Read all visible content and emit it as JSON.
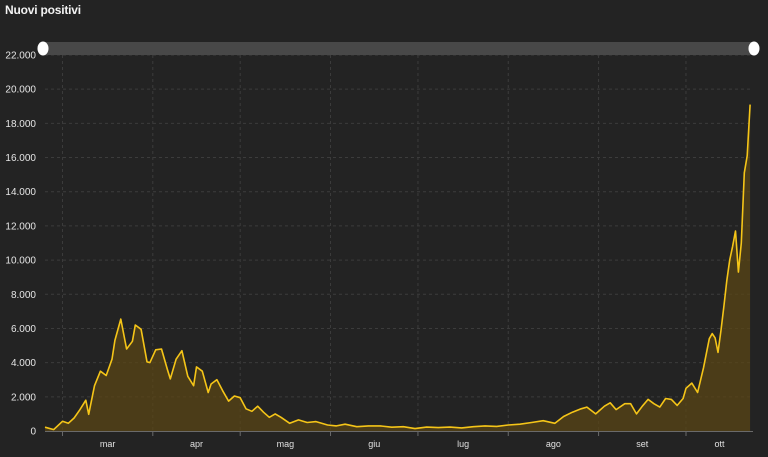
{
  "chart_data": {
    "type": "area",
    "title": "Nuovi positivi",
    "xlabel": "",
    "ylabel": "",
    "ylim": [
      0,
      22000
    ],
    "y_ticks": [
      "0",
      "2.000",
      "4.000",
      "6.000",
      "8.000",
      "10.000",
      "12.000",
      "14.000",
      "16.000",
      "18.000",
      "20.000",
      "22.000"
    ],
    "y_tick_values": [
      0,
      2000,
      4000,
      6000,
      8000,
      10000,
      12000,
      14000,
      16000,
      18000,
      20000,
      22000
    ],
    "x_ticks": [
      "mar",
      "apr",
      "mag",
      "giu",
      "lug",
      "ago",
      "set",
      "ott"
    ],
    "x_start": "2020-02-24",
    "x_end": "2020-10-17",
    "x_tick_dates": [
      "2020-03-01",
      "2020-04-01",
      "2020-05-01",
      "2020-06-01",
      "2020-07-01",
      "2020-08-01",
      "2020-09-01",
      "2020-10-01"
    ],
    "grid": true,
    "line_color": "#f5c518",
    "fill_color": "#5a4616",
    "series": [
      {
        "name": "Nuovi positivi",
        "points": [
          [
            "2020-02-24",
            220
          ],
          [
            "2020-02-27",
            80
          ],
          [
            "2020-03-01",
            570
          ],
          [
            "2020-03-03",
            450
          ],
          [
            "2020-03-05",
            760
          ],
          [
            "2020-03-07",
            1250
          ],
          [
            "2020-03-09",
            1800
          ],
          [
            "2020-03-10",
            980
          ],
          [
            "2020-03-12",
            2650
          ],
          [
            "2020-03-14",
            3500
          ],
          [
            "2020-03-16",
            3250
          ],
          [
            "2020-03-18",
            4200
          ],
          [
            "2020-03-19",
            5300
          ],
          [
            "2020-03-21",
            6550
          ],
          [
            "2020-03-23",
            4800
          ],
          [
            "2020-03-25",
            5250
          ],
          [
            "2020-03-26",
            6200
          ],
          [
            "2020-03-28",
            5950
          ],
          [
            "2020-03-30",
            4050
          ],
          [
            "2020-03-31",
            4000
          ],
          [
            "2020-04-02",
            4750
          ],
          [
            "2020-04-04",
            4800
          ],
          [
            "2020-04-06",
            3600
          ],
          [
            "2020-04-07",
            3050
          ],
          [
            "2020-04-09",
            4200
          ],
          [
            "2020-04-11",
            4700
          ],
          [
            "2020-04-13",
            3200
          ],
          [
            "2020-04-15",
            2650
          ],
          [
            "2020-04-16",
            3750
          ],
          [
            "2020-04-18",
            3500
          ],
          [
            "2020-04-20",
            2250
          ],
          [
            "2020-04-21",
            2750
          ],
          [
            "2020-04-23",
            3000
          ],
          [
            "2020-04-25",
            2350
          ],
          [
            "2020-04-27",
            1750
          ],
          [
            "2020-04-29",
            2050
          ],
          [
            "2020-05-01",
            1950
          ],
          [
            "2020-05-03",
            1300
          ],
          [
            "2020-05-05",
            1150
          ],
          [
            "2020-05-07",
            1450
          ],
          [
            "2020-05-09",
            1100
          ],
          [
            "2020-05-11",
            800
          ],
          [
            "2020-05-13",
            1000
          ],
          [
            "2020-05-15",
            800
          ],
          [
            "2020-05-18",
            450
          ],
          [
            "2020-05-21",
            650
          ],
          [
            "2020-05-24",
            500
          ],
          [
            "2020-05-27",
            550
          ],
          [
            "2020-05-31",
            350
          ],
          [
            "2020-06-03",
            300
          ],
          [
            "2020-06-06",
            400
          ],
          [
            "2020-06-10",
            250
          ],
          [
            "2020-06-14",
            300
          ],
          [
            "2020-06-18",
            300
          ],
          [
            "2020-06-22",
            220
          ],
          [
            "2020-06-26",
            250
          ],
          [
            "2020-06-30",
            140
          ],
          [
            "2020-07-04",
            230
          ],
          [
            "2020-07-08",
            200
          ],
          [
            "2020-07-12",
            230
          ],
          [
            "2020-07-16",
            180
          ],
          [
            "2020-07-20",
            250
          ],
          [
            "2020-07-24",
            300
          ],
          [
            "2020-07-28",
            270
          ],
          [
            "2020-08-01",
            350
          ],
          [
            "2020-08-05",
            400
          ],
          [
            "2020-08-09",
            500
          ],
          [
            "2020-08-13",
            600
          ],
          [
            "2020-08-17",
            450
          ],
          [
            "2020-08-20",
            850
          ],
          [
            "2020-08-23",
            1100
          ],
          [
            "2020-08-26",
            1300
          ],
          [
            "2020-08-28",
            1400
          ],
          [
            "2020-08-31",
            1000
          ],
          [
            "2020-09-03",
            1450
          ],
          [
            "2020-09-05",
            1650
          ],
          [
            "2020-09-07",
            1250
          ],
          [
            "2020-09-10",
            1600
          ],
          [
            "2020-09-12",
            1600
          ],
          [
            "2020-09-14",
            1000
          ],
          [
            "2020-09-16",
            1450
          ],
          [
            "2020-09-18",
            1850
          ],
          [
            "2020-09-20",
            1600
          ],
          [
            "2020-09-22",
            1400
          ],
          [
            "2020-09-24",
            1900
          ],
          [
            "2020-09-26",
            1850
          ],
          [
            "2020-09-28",
            1500
          ],
          [
            "2020-09-30",
            1900
          ],
          [
            "2020-10-01",
            2500
          ],
          [
            "2020-10-03",
            2800
          ],
          [
            "2020-10-05",
            2250
          ],
          [
            "2020-10-07",
            3700
          ],
          [
            "2020-10-09",
            5400
          ],
          [
            "2020-10-10",
            5700
          ],
          [
            "2020-10-11",
            5450
          ],
          [
            "2020-10-12",
            4600
          ],
          [
            "2020-10-13",
            5900
          ],
          [
            "2020-10-14",
            7300
          ],
          [
            "2020-10-15",
            8800
          ],
          [
            "2020-10-16",
            10000
          ],
          [
            "2020-10-17",
            10800
          ],
          [
            "2020-10-18",
            11700
          ],
          [
            "2020-10-19",
            9300
          ],
          [
            "2020-10-20",
            11000
          ],
          [
            "2020-10-21",
            15100
          ],
          [
            "2020-10-22",
            16100
          ],
          [
            "2020-10-23",
            19100
          ]
        ]
      }
    ]
  }
}
